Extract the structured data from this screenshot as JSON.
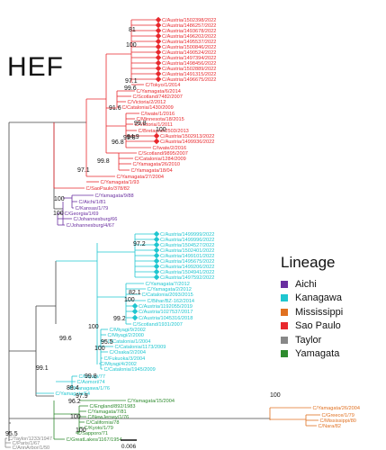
{
  "title": "HEF",
  "legend": {
    "title": "Lineage",
    "items": [
      {
        "name": "Aichi",
        "color": "#6a2fa0"
      },
      {
        "name": "Kanagawa",
        "color": "#1fc6d0"
      },
      {
        "name": "Mississippi",
        "color": "#e07020"
      },
      {
        "name": "Sao Paulo",
        "color": "#e8282d"
      },
      {
        "name": "Taylor",
        "color": "#888888"
      },
      {
        "name": "Yamagata",
        "color": "#2e8b2e"
      }
    ]
  },
  "scale_bar": {
    "label": "0.006"
  },
  "colors": {
    "sp": "#e8282d",
    "ai": "#6a2fa0",
    "ka": "#1fc6d0",
    "ya": "#2e8b2e",
    "mi": "#e07020",
    "ta": "#888888",
    "line": "#444444"
  },
  "tips": [
    {
      "label": "C/Austria/1502398/2022",
      "lin": "sp",
      "dot": true
    },
    {
      "label": "C/Austria/1486257/2022",
      "lin": "sp",
      "dot": true
    },
    {
      "label": "C/Austria/1493678/2022",
      "lin": "sp",
      "dot": true
    },
    {
      "label": "C/Austria/1496202/2022",
      "lin": "sp",
      "dot": true
    },
    {
      "label": "C/Austria/1495537/2022",
      "lin": "sp",
      "dot": true
    },
    {
      "label": "C/Austria/1500846/2022",
      "lin": "sp",
      "dot": true
    },
    {
      "label": "C/Austria/1490524/2022",
      "lin": "sp",
      "dot": true
    },
    {
      "label": "C/Austria/1497394/2022",
      "lin": "sp",
      "dot": true
    },
    {
      "label": "C/Austria/1498456/2022",
      "lin": "sp",
      "dot": true
    },
    {
      "label": "C/Austria/1502889/2022",
      "lin": "sp",
      "dot": true
    },
    {
      "label": "C/Austria/1491315/2022",
      "lin": "sp",
      "dot": true
    },
    {
      "label": "C/Austria/1496675/2022",
      "lin": "sp",
      "dot": true
    },
    {
      "label": "C/Tokyo/1/2014",
      "lin": "sp",
      "dot": false
    },
    {
      "label": "C/Yamagata/6/2014",
      "lin": "sp",
      "dot": false
    },
    {
      "label": "C/Scotland/7482/2007",
      "lin": "sp",
      "dot": false
    },
    {
      "label": "C/Victoria/2/2012",
      "lin": "sp",
      "dot": false
    },
    {
      "label": "C/Catalonia/1430/2009",
      "lin": "sp",
      "dot": false
    },
    {
      "label": "C/Iwate/1/2016",
      "lin": "sp",
      "dot": false
    },
    {
      "label": "C/Minnesota/18/2015",
      "lin": "sp",
      "dot": false
    },
    {
      "label": "C/Victoria/1/2011",
      "lin": "sp",
      "dot": false
    },
    {
      "label": "C/Bretagne/2503/2013",
      "lin": "sp",
      "dot": false
    },
    {
      "label": "C/Austria/1502913/2022",
      "lin": "sp",
      "dot": true
    },
    {
      "label": "C/Austria/1499936/2022",
      "lin": "sp",
      "dot": true
    },
    {
      "label": "C/Iwate/2/2016",
      "lin": "sp",
      "dot": false
    },
    {
      "label": "C/Scotland/9895/2007",
      "lin": "sp",
      "dot": false
    },
    {
      "label": "C/Catalonia/1284/2009",
      "lin": "sp",
      "dot": false
    },
    {
      "label": "C/Yamagata/26/2010",
      "lin": "sp",
      "dot": false
    },
    {
      "label": "C/Yamagata/18/04",
      "lin": "sp",
      "dot": false
    },
    {
      "label": "C/Yamagata/27/2004",
      "lin": "sp",
      "dot": false
    },
    {
      "label": "C/Yamagata/1/93",
      "lin": "sp",
      "dot": false
    },
    {
      "label": "C/SaoPaulo/378/82",
      "lin": "sp",
      "dot": false
    },
    {
      "label": "C/Yamagata/9/88",
      "lin": "ai",
      "dot": false
    },
    {
      "label": "C/Aichi/1/81",
      "lin": "ai",
      "dot": false
    },
    {
      "label": "C/Kansas/1/79",
      "lin": "ai",
      "dot": false
    },
    {
      "label": "C/Georgia/1/69",
      "lin": "ai",
      "dot": false
    },
    {
      "label": "C/Johannesburg/66",
      "lin": "ai",
      "dot": false
    },
    {
      "label": "C/Johannesburg/4/67",
      "lin": "ai",
      "dot": false
    },
    {
      "label": "C/Austria/1499999/2022",
      "lin": "ka",
      "dot": true
    },
    {
      "label": "C/Austria/1499996/2022",
      "lin": "ka",
      "dot": true
    },
    {
      "label": "C/Austria/1504527/2022",
      "lin": "ka",
      "dot": true
    },
    {
      "label": "C/Austria/1502401/2022",
      "lin": "ka",
      "dot": true
    },
    {
      "label": "C/Austria/1499101/2022",
      "lin": "ka",
      "dot": true
    },
    {
      "label": "C/Austria/1495675/2022",
      "lin": "ka",
      "dot": true
    },
    {
      "label": "C/Austria/1499206/2022",
      "lin": "ka",
      "dot": true
    },
    {
      "label": "C/Austria/1504941/2022",
      "lin": "ka",
      "dot": true
    },
    {
      "label": "C/Austria/1497592/2022",
      "lin": "ka",
      "dot": true
    },
    {
      "label": "C/Yamagata/7/2012",
      "lin": "ka",
      "dot": false
    },
    {
      "label": "C/Yamagata/2/2012",
      "lin": "ka",
      "dot": false
    },
    {
      "label": "C/Catalonia/2093/2015",
      "lin": "ka",
      "dot": false
    },
    {
      "label": "C/Bihar/BZ-162/2014",
      "lin": "ka",
      "dot": false
    },
    {
      "label": "C/Austria/1192055/2019",
      "lin": "ka",
      "dot": true
    },
    {
      "label": "C/Austria/1027537/2017",
      "lin": "ka",
      "dot": true
    },
    {
      "label": "C/Austria/1045316/2018",
      "lin": "ka",
      "dot": true
    },
    {
      "label": "C/Scotland/1931/2007",
      "lin": "ka",
      "dot": false
    },
    {
      "label": "C/Miyagi/9/2002",
      "lin": "ka",
      "dot": false
    },
    {
      "label": "C/Miyagi/2/2000",
      "lin": "ka",
      "dot": false
    },
    {
      "label": "C/Catalonia/1/2004",
      "lin": "ka",
      "dot": false
    },
    {
      "label": "C/Catalonia/1173/2009",
      "lin": "ka",
      "dot": false
    },
    {
      "label": "C/Osaka/2/2004",
      "lin": "ka",
      "dot": false
    },
    {
      "label": "C/Fukuoka/3/2004",
      "lin": "ka",
      "dot": false
    },
    {
      "label": "C/Miyagi/4/2002",
      "lin": "ka",
      "dot": false
    },
    {
      "label": "C/Catalonia/1945/2009",
      "lin": "ka",
      "dot": false
    },
    {
      "label": "C/Miyagi/77",
      "lin": "ka",
      "dot": false
    },
    {
      "label": "C/Aomori/74",
      "lin": "ka",
      "dot": false
    },
    {
      "label": "C/Kanagawa/1/76",
      "lin": "ka",
      "dot": false
    },
    {
      "label": "C/Yamagata/64",
      "lin": "ka",
      "dot": false
    },
    {
      "label": "C/Yamagata/15/2004",
      "lin": "ya",
      "dot": false
    },
    {
      "label": "C/England/892/1983",
      "lin": "ya",
      "dot": false
    },
    {
      "label": "C/Yamagata/7/81",
      "lin": "ya",
      "dot": false
    },
    {
      "label": "C/NewJersey/1/76",
      "lin": "ya",
      "dot": false
    },
    {
      "label": "C/California/78",
      "lin": "ya",
      "dot": false
    },
    {
      "label": "C/Kyoto/1/79",
      "lin": "ya",
      "dot": false
    },
    {
      "label": "C/Sapporo/71",
      "lin": "ya",
      "dot": false
    },
    {
      "label": "C/GreatLakes/1167/1954",
      "lin": "ya",
      "dot": false
    },
    {
      "label": "C/Yamagata/26/2004",
      "lin": "mi",
      "dot": false
    },
    {
      "label": "C/Greece/1/79",
      "lin": "mi",
      "dot": false
    },
    {
      "label": "C/Mississippi/80",
      "lin": "mi",
      "dot": false
    },
    {
      "label": "C/Nara/82",
      "lin": "mi",
      "dot": false
    },
    {
      "label": "C/Taylor/1233/1947",
      "lin": "ta",
      "dot": false
    },
    {
      "label": "C/Paris/1/67",
      "lin": "ta",
      "dot": false
    },
    {
      "label": "C/AnnArbor/1/50",
      "lin": "ta",
      "dot": false
    }
  ],
  "bootstraps": [
    {
      "value": "81"
    },
    {
      "value": "100"
    },
    {
      "value": "97.1"
    },
    {
      "value": "99.6"
    },
    {
      "value": "91.6"
    },
    {
      "value": "99.8"
    },
    {
      "value": "100"
    },
    {
      "value": "94.9"
    },
    {
      "value": "99.8"
    },
    {
      "value": "96.8"
    },
    {
      "value": "99.8"
    },
    {
      "value": "97.1"
    },
    {
      "value": "100"
    },
    {
      "value": "100"
    },
    {
      "value": "97.2"
    },
    {
      "value": "82.1"
    },
    {
      "value": "100"
    },
    {
      "value": "99.2"
    },
    {
      "value": "100"
    },
    {
      "value": "99.6"
    },
    {
      "value": "95.5"
    },
    {
      "value": "100"
    },
    {
      "value": "99.1"
    },
    {
      "value": "99.8"
    },
    {
      "value": "89.4"
    },
    {
      "value": "97.9"
    },
    {
      "value": "96.2"
    },
    {
      "value": "100"
    },
    {
      "value": "100"
    },
    {
      "value": "100"
    },
    {
      "value": "95.5"
    }
  ]
}
